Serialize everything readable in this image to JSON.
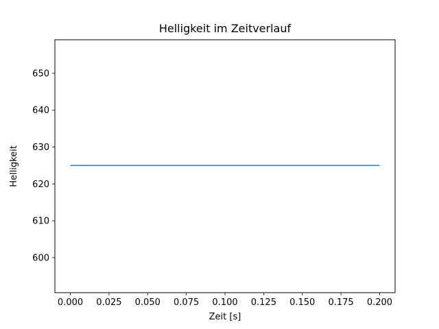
{
  "chart_data": {
    "type": "line",
    "title": "Helligkeit im Zeitverlauf",
    "xlabel": "Zeit [s]",
    "ylabel": "Helligkeit",
    "xlim": [
      -0.01,
      0.21
    ],
    "ylim": [
      590.5,
      659.1
    ],
    "grid": false,
    "legend": "none",
    "x_ticks": [
      0.0,
      0.025,
      0.05,
      0.075,
      0.1,
      0.125,
      0.15,
      0.175,
      0.2
    ],
    "x_tick_labels": [
      "0.000",
      "0.025",
      "0.050",
      "0.075",
      "0.100",
      "0.125",
      "0.150",
      "0.175",
      "0.200"
    ],
    "y_ticks": [
      600,
      610,
      620,
      630,
      640,
      650
    ],
    "y_tick_labels": [
      "600",
      "610",
      "620",
      "630",
      "640",
      "650"
    ],
    "series": [
      {
        "name": "Helligkeit",
        "x": [
          0.0,
          0.2
        ],
        "y": [
          625,
          625
        ],
        "color": "#1f77b4"
      }
    ]
  },
  "colors": {
    "background": "#ffffff",
    "axis": "#000000",
    "line": "#1f77b4"
  }
}
